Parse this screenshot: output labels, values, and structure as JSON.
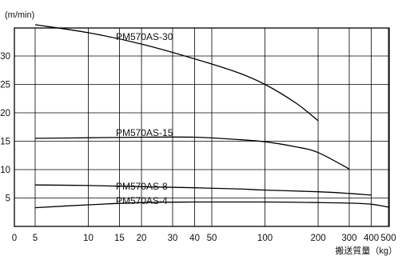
{
  "chart_data": {
    "type": "line",
    "title": "",
    "ylabel": "(m/min)",
    "xlabel": "搬送質量（kg）",
    "x_scale": "log",
    "xlim": [
      0,
      500
    ],
    "ylim": [
      0,
      36
    ],
    "grid": true,
    "x_ticks": [
      0,
      5,
      10,
      15,
      20,
      30,
      40,
      50,
      100,
      200,
      300,
      400,
      500
    ],
    "x_tick_labels": [
      "0",
      "5",
      "10",
      "15",
      "20",
      "30",
      "40",
      "50",
      "100",
      "200",
      "300",
      "400",
      "500"
    ],
    "y_ticks": [
      5,
      10,
      15,
      20,
      25,
      30
    ],
    "y_tick_labels": [
      "5",
      "10",
      "15",
      "20",
      "25",
      "30"
    ],
    "series": [
      {
        "name": "PM570AS-30",
        "x": [
          5,
          10,
          20,
          40,
          70,
          100,
          150,
          200
        ],
        "y": [
          35.5,
          34.1,
          32.1,
          29.5,
          27.1,
          25.0,
          21.7,
          18.6
        ]
      },
      {
        "name": "PM570AS-15",
        "x": [
          5,
          10,
          20,
          40,
          70,
          100,
          150,
          200,
          300
        ],
        "y": [
          15.5,
          15.6,
          15.7,
          15.7,
          15.3,
          14.9,
          14.0,
          13.0,
          10.1
        ]
      },
      {
        "name": "PM570AS-8",
        "x": [
          5,
          10,
          20,
          40,
          70,
          100,
          200,
          300,
          400
        ],
        "y": [
          7.3,
          7.2,
          7.0,
          6.8,
          6.6,
          6.4,
          6.1,
          5.8,
          5.5
        ]
      },
      {
        "name": "PM570AS-4",
        "x": [
          5,
          10,
          20,
          40,
          70,
          100,
          200,
          300,
          400,
          500
        ],
        "y": [
          3.3,
          3.8,
          4.2,
          4.3,
          4.3,
          4.3,
          4.2,
          4.1,
          3.9,
          3.4
        ]
      }
    ],
    "annotations": [
      "PM570AS-30",
      "PM570AS-15",
      "PM570AS-8",
      "PM570AS-4"
    ]
  }
}
